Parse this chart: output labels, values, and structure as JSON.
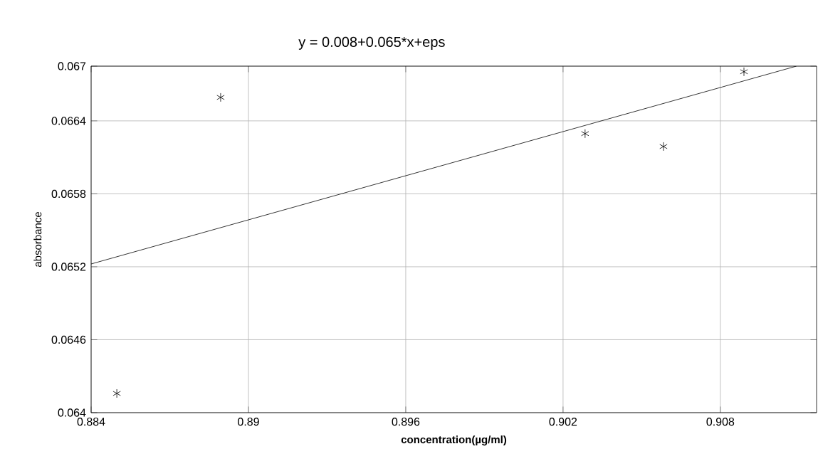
{
  "chart_data": {
    "type": "scatter",
    "title": "y = 0.008+0.065*x+eps",
    "xlabel": "concentration(µg/ml)",
    "ylabel": "absorbance",
    "xlim": [
      0.884,
      0.91167
    ],
    "ylim": [
      0.064,
      0.06685
    ],
    "xticks": [
      0.884,
      0.89,
      0.896,
      0.902,
      0.908
    ],
    "yticks": [
      0.064,
      0.0646,
      0.0652,
      0.0658,
      0.0664,
      {
        "value": 0.06685,
        "label": "0.067"
      }
    ],
    "grid": true,
    "series": [
      {
        "type": "scatter",
        "color": "#000000",
        "marker": "cross",
        "x": [
          0.88498,
          0.88894,
          0.90284,
          0.90583,
          0.9089
        ],
        "values": [
          0.064158,
          0.066593,
          0.066295,
          0.066189,
          0.066804
        ]
      },
      {
        "type": "line",
        "color": "#000000",
        "line_style": "solid",
        "x": [
          0.884,
          0.9109
        ],
        "values": [
          0.065223,
          0.06685
        ]
      }
    ]
  }
}
